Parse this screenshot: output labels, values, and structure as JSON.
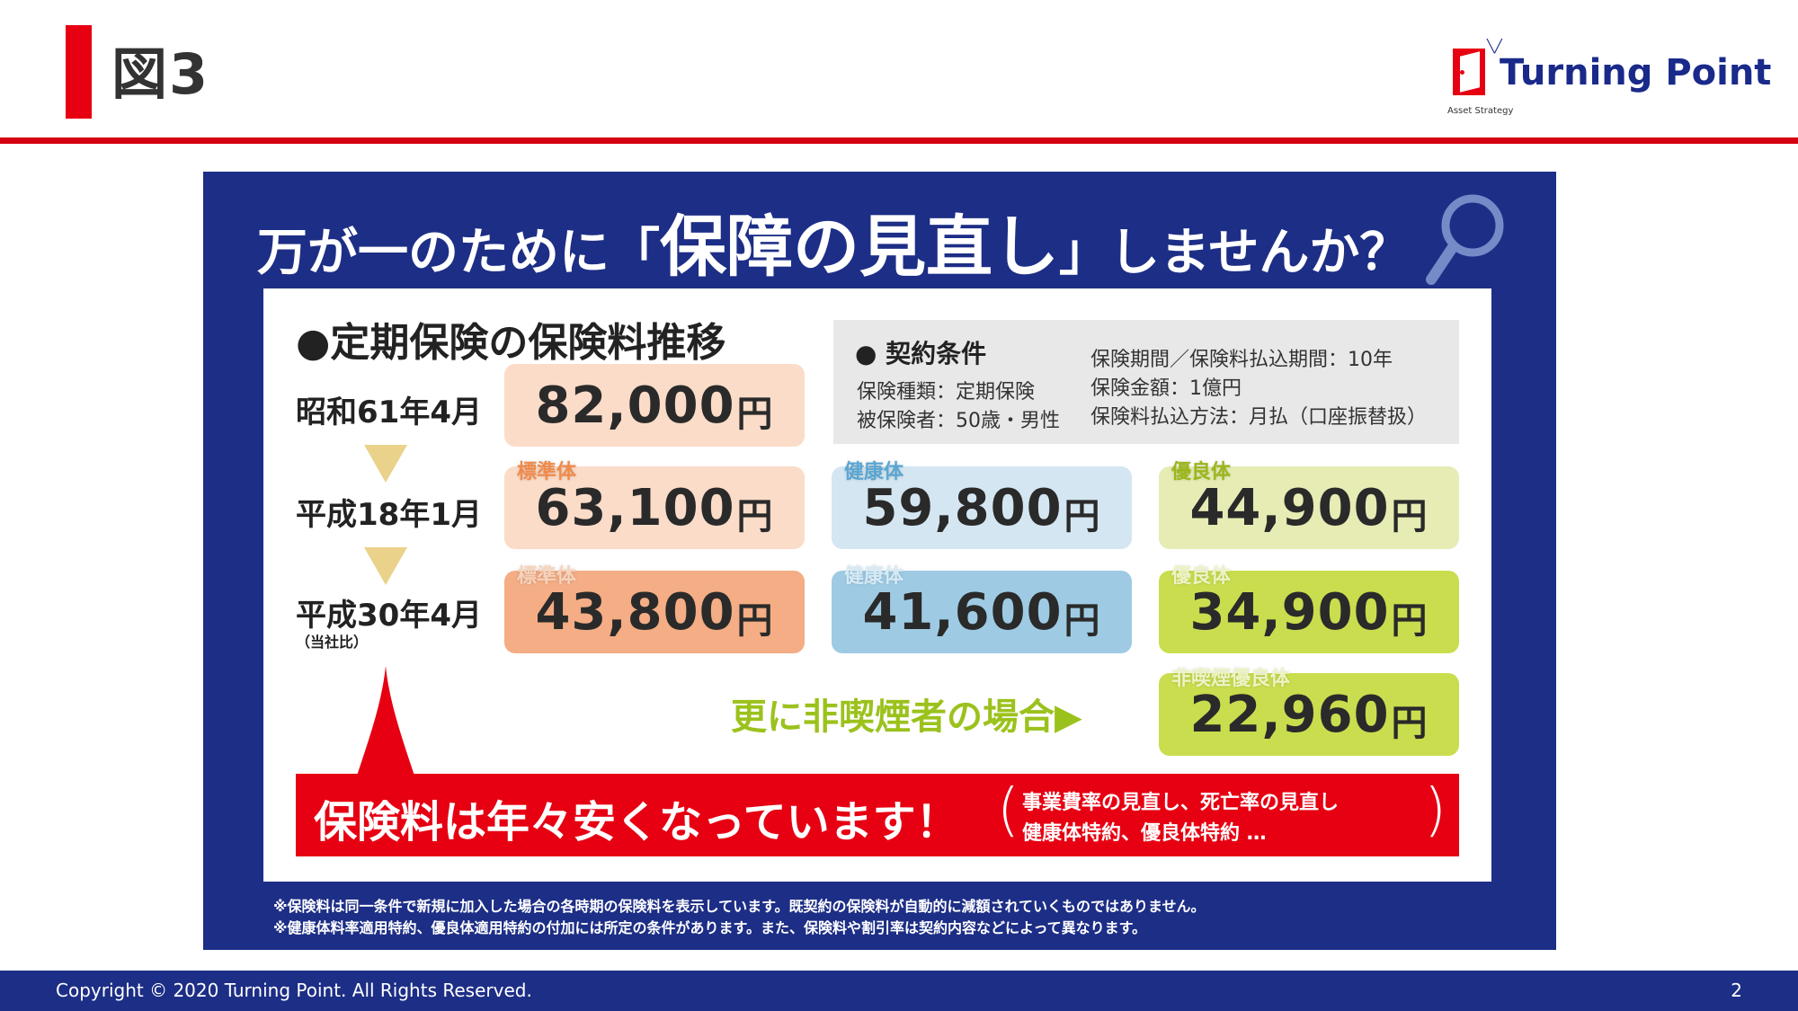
{
  "header": {
    "title": "図3"
  },
  "logo": {
    "name": "Turning Point",
    "sub": "Asset Strategy"
  },
  "headline": {
    "part1": "万が一のために「",
    "part2": "保障の見直し",
    "part3": "」しませんか？"
  },
  "section_title": "●定期保険の保険料推移",
  "conditions": {
    "title": "●  契約条件",
    "left": [
      "保険種類：定期保険",
      "被保険者：50歳・男性"
    ],
    "right": [
      "保険期間／保険料払込期間：10年",
      "保険金額：1億円",
      "保険料払込方法：月払（口座振替扱）"
    ]
  },
  "rows": [
    {
      "label": "昭和61年4月",
      "sub": ""
    },
    {
      "label": "平成18年1月",
      "sub": ""
    },
    {
      "label": "平成30年4月",
      "sub": "（当社比）"
    }
  ],
  "prices": {
    "yen": "円",
    "showa": {
      "amount": "82,000"
    },
    "h18": [
      {
        "tag": "標準体",
        "amount": "63,100"
      },
      {
        "tag": "健康体",
        "amount": "59,800"
      },
      {
        "tag": "優良体",
        "amount": "44,900"
      }
    ],
    "h30": [
      {
        "tag": "標準体",
        "amount": "43,800"
      },
      {
        "tag": "健康体",
        "amount": "41,600"
      },
      {
        "tag": "優良体",
        "amount": "34,900"
      }
    ],
    "nonsmoker": {
      "tag": "非喫煙優良体",
      "amount": "22,960"
    }
  },
  "nonsmoker_label": "更に非喫煙者の場合▶",
  "banner": {
    "main": "保険料は年々安くなっています！",
    "sub1": "事業費率の見直し、死亡率の見直し",
    "sub2": "健康体特約、優良体特約 …"
  },
  "notes": [
    "※保険料は同一条件で新規に加入した場合の各時期の保険料を表示しています。既契約の保険料が自動的に減額されていくものではありません。",
    "※健康体料率適用特約、優良体適用特約の付加には所定の条件があります。また、保険料や割引率は契約内容などによって異なります。"
  ],
  "footer": {
    "copyright": "Copyright © 2020 Turning Point. All Rights Reserved.",
    "page": "2"
  },
  "colors": {
    "accent_red": "#e60012",
    "navy": "#1d2e86"
  }
}
